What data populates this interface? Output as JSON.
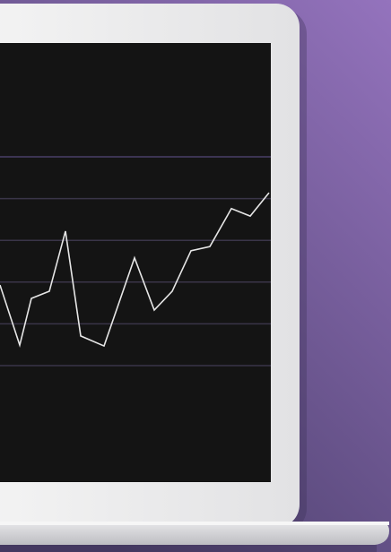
{
  "chart_data": {
    "type": "line",
    "x": [
      0,
      22,
      35,
      55,
      73,
      90,
      116,
      150,
      172,
      192,
      213,
      234,
      258,
      279,
      300
    ],
    "values": [
      1.93,
      0.49,
      1.61,
      1.78,
      3.22,
      0.71,
      0.47,
      2.58,
      1.33,
      1.78,
      2.75,
      2.85,
      3.76,
      3.58,
      4.14
    ],
    "color": "#e6e6e6",
    "xlim": [
      0,
      300
    ],
    "ylim": [
      0,
      5
    ],
    "yticks": [
      0,
      1,
      2,
      3,
      4,
      5
    ],
    "grid": true
  }
}
